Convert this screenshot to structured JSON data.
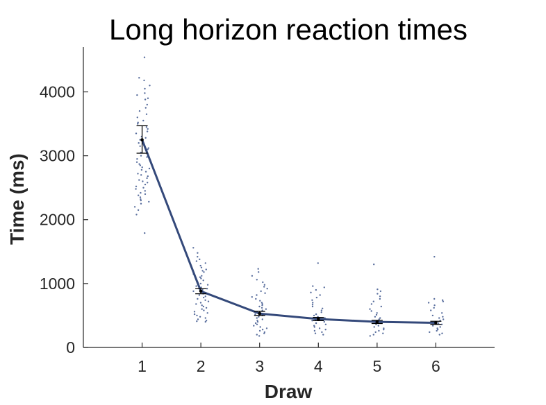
{
  "chart_data": {
    "type": "line",
    "title": "Long horizon reaction times",
    "xlabel": "Draw",
    "ylabel": "Time (ms)",
    "x": [
      1,
      2,
      3,
      4,
      5,
      6
    ],
    "xticks": [
      "1",
      "2",
      "3",
      "4",
      "5",
      "6"
    ],
    "xlim": [
      0,
      7
    ],
    "yticks": [
      "0",
      "1000",
      "2000",
      "3000",
      "4000"
    ],
    "ylim": [
      0,
      4700
    ],
    "grid": false,
    "legend": "none",
    "series": [
      {
        "mean": [
          3250,
          880,
          530,
          445,
          400,
          385
        ],
        "error_low": [
          3040,
          840,
          500,
          420,
          375,
          360
        ],
        "error_high": [
          3470,
          920,
          565,
          470,
          425,
          410
        ],
        "color": "#34497a"
      }
    ],
    "points": {
      "color": "#5a6f9e",
      "draws": [
        [
          4540,
          4220,
          4180,
          4100,
          4050,
          3980,
          3950,
          3900,
          3880,
          3800,
          3750,
          3700,
          3650,
          3600,
          3550,
          3520,
          3500,
          3450,
          3420,
          3380,
          3350,
          3300,
          3280,
          3250,
          3200,
          3150,
          3120,
          3100,
          3050,
          3000,
          2980,
          2950,
          2900,
          2870,
          2850,
          2820,
          2800,
          2780,
          2750,
          2720,
          2700,
          2680,
          2650,
          2620,
          2600,
          2580,
          2550,
          2520,
          2500,
          2480,
          2450,
          2420,
          2400,
          2380,
          2350,
          2320,
          2300,
          2280,
          2250,
          2200,
          2150,
          2080,
          1790
        ],
        [
          1560,
          1480,
          1420,
          1380,
          1350,
          1320,
          1280,
          1250,
          1220,
          1200,
          1180,
          1150,
          1120,
          1100,
          1080,
          1050,
          1020,
          1000,
          980,
          960,
          940,
          920,
          900,
          880,
          860,
          840,
          820,
          800,
          780,
          760,
          740,
          720,
          700,
          680,
          660,
          640,
          620,
          600,
          580,
          560,
          540,
          520,
          500,
          480,
          460,
          440,
          420,
          410,
          400
        ],
        [
          1230,
          1180,
          1120,
          1060,
          1020,
          980,
          950,
          920,
          880,
          850,
          820,
          790,
          760,
          730,
          700,
          680,
          660,
          640,
          620,
          600,
          580,
          560,
          540,
          520,
          500,
          480,
          460,
          440,
          420,
          400,
          380,
          360,
          340,
          320,
          300,
          280,
          260,
          240,
          220,
          200,
          180
        ],
        [
          1320,
          960,
          940,
          900,
          860,
          820,
          780,
          740,
          700,
          670,
          640,
          610,
          580,
          550,
          520,
          500,
          480,
          460,
          440,
          420,
          400,
          380,
          360,
          340,
          320,
          300,
          280,
          260,
          240,
          220,
          200
        ],
        [
          1300,
          910,
          880,
          840,
          800,
          760,
          720,
          680,
          640,
          600,
          570,
          540,
          510,
          480,
          460,
          440,
          420,
          400,
          380,
          360,
          340,
          320,
          300,
          280,
          260,
          240,
          220,
          200,
          180
        ],
        [
          1420,
          760,
          740,
          720,
          700,
          660,
          620,
          580,
          540,
          500,
          480,
          460,
          440,
          420,
          400,
          380,
          360,
          340,
          320,
          300,
          280,
          260,
          240,
          220,
          200
        ]
      ]
    }
  }
}
